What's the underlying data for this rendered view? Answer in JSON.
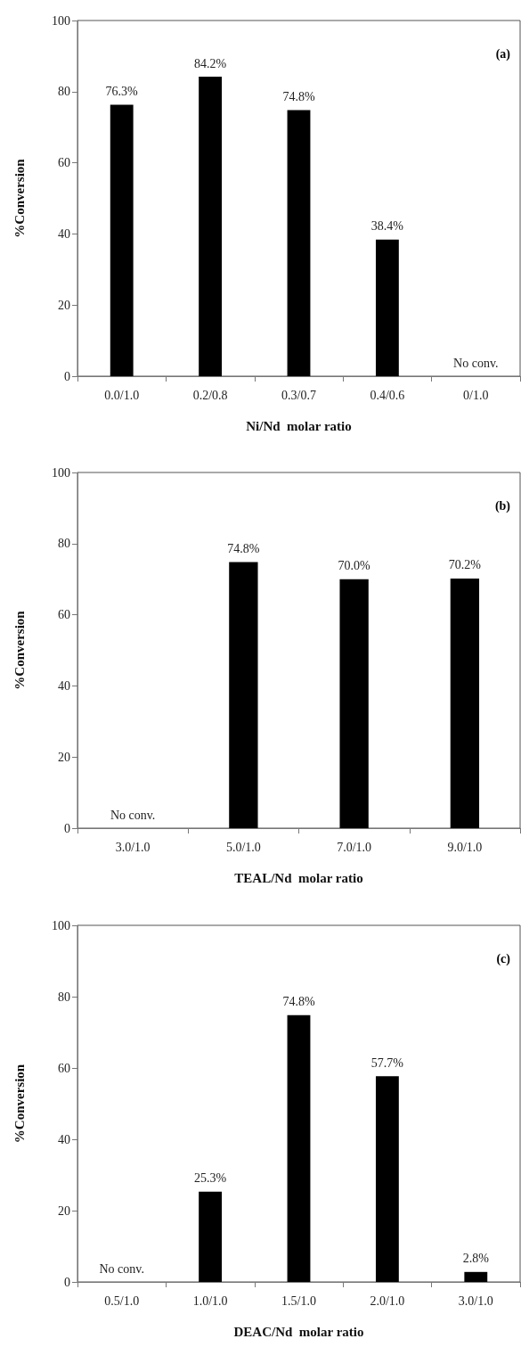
{
  "chart_data": [
    {
      "type": "bar",
      "categories": [
        "0.0/1.0",
        "0.2/0.8",
        "0.3/0.7",
        "0.4/0.6",
        "0/1.0"
      ],
      "values": [
        76.3,
        84.2,
        74.8,
        38.4,
        0
      ],
      "value_labels": [
        "76.3%",
        "84.2%",
        "74.8%",
        "38.4%",
        "No conv."
      ],
      "color": "#000000",
      "xlabel": "Ni/Nd  molar ratio",
      "ylabel": "%Conversion",
      "ylim": [
        0,
        100
      ],
      "yticks": [
        0,
        20,
        40,
        60,
        80,
        100
      ],
      "annotations": [
        "(a)"
      ]
    },
    {
      "type": "bar",
      "categories": [
        "3.0/1.0",
        "5.0/1.0",
        "7.0/1.0",
        "9.0/1.0"
      ],
      "values": [
        0,
        74.8,
        70.0,
        70.2
      ],
      "value_labels": [
        "No conv.",
        "74.8%",
        "70.0%",
        "70.2%"
      ],
      "color": "#000000",
      "xlabel": "TEAL/Nd  molar ratio",
      "ylabel": "%Conversion",
      "ylim": [
        0,
        100
      ],
      "yticks": [
        0,
        20,
        40,
        60,
        80,
        100
      ],
      "annotations": [
        "(b)"
      ]
    },
    {
      "type": "bar",
      "categories": [
        "0.5/1.0",
        "1.0/1.0",
        "1.5/1.0",
        "2.0/1.0",
        "3.0/1.0"
      ],
      "values": [
        0,
        25.3,
        74.8,
        57.7,
        2.8
      ],
      "value_labels": [
        "No conv.",
        "25.3%",
        "74.8%",
        "57.7%",
        "2.8%"
      ],
      "color": "#000000",
      "xlabel": "DEAC/Nd  molar ratio",
      "ylabel": "%Conversion",
      "ylim": [
        0,
        100
      ],
      "yticks": [
        0,
        20,
        40,
        60,
        80,
        100
      ],
      "annotations": [
        "(c)"
      ]
    }
  ]
}
